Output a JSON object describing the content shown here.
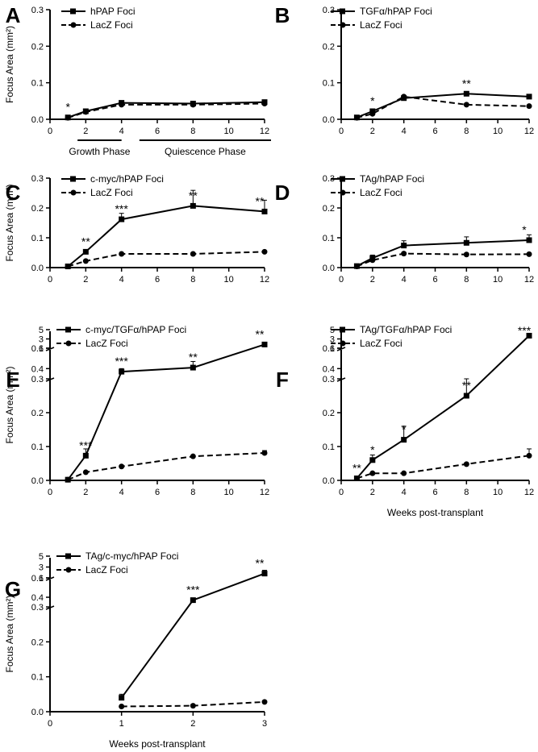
{
  "figure_caption": "",
  "chart_data": [
    {
      "panel": "A",
      "type": "line",
      "title": "",
      "ylabel": "Focus Area (mm²)",
      "xlabel": "",
      "xlim": [
        0,
        12
      ],
      "xticks": [
        0,
        2,
        4,
        6,
        8,
        10,
        12
      ],
      "ylim": [
        0,
        0.3
      ],
      "yticks": [
        0.0,
        0.1,
        0.2,
        0.3
      ],
      "series": [
        {
          "name": "hPAP Foci",
          "style": "solid",
          "marker": "square",
          "x": [
            1,
            2,
            4,
            8,
            12
          ],
          "y": [
            0.005,
            0.022,
            0.045,
            0.043,
            0.047
          ],
          "err": [
            0,
            0.003,
            0.004,
            0.004,
            0.004
          ]
        },
        {
          "name": "LacZ Foci",
          "style": "dashed",
          "marker": "circle",
          "x": [
            1,
            2,
            4,
            8,
            12
          ],
          "y": [
            0.004,
            0.02,
            0.04,
            0.04,
            0.043
          ],
          "err": [
            0,
            0,
            0,
            0,
            0
          ]
        }
      ],
      "annotations": [
        {
          "x": 1,
          "y": 0.005,
          "text": "*"
        }
      ],
      "phases": [
        {
          "label": "Growth Phase",
          "from": 1,
          "to": 4
        },
        {
          "label": "Quiescence Phase",
          "from": 5,
          "to": 12
        }
      ]
    },
    {
      "panel": "B",
      "type": "line",
      "title": "",
      "ylabel": "",
      "xlabel": "",
      "xlim": [
        0,
        12
      ],
      "xticks": [
        0,
        2,
        4,
        6,
        8,
        10,
        12
      ],
      "ylim": [
        0,
        0.3
      ],
      "yticks": [
        0.0,
        0.1,
        0.2,
        0.3
      ],
      "series": [
        {
          "name": "TGFα/hPAP Foci",
          "style": "solid",
          "marker": "square",
          "x": [
            1,
            2,
            4,
            8,
            12
          ],
          "y": [
            0.005,
            0.022,
            0.058,
            0.07,
            0.062
          ],
          "err": [
            0,
            0.004,
            0.004,
            0.006,
            0.006
          ]
        },
        {
          "name": "LacZ Foci",
          "style": "dashed",
          "marker": "circle",
          "x": [
            1,
            2,
            4,
            8,
            12
          ],
          "y": [
            0.004,
            0.015,
            0.062,
            0.04,
            0.036
          ],
          "err": [
            0,
            0,
            0,
            0,
            0
          ]
        }
      ],
      "annotations": [
        {
          "x": 2,
          "y": 0.022,
          "text": "*"
        },
        {
          "x": 8,
          "y": 0.07,
          "text": "**"
        }
      ]
    },
    {
      "panel": "C",
      "type": "line",
      "title": "",
      "ylabel": "Focus Area (mm²)",
      "xlabel": "",
      "xlim": [
        0,
        12
      ],
      "xticks": [
        0,
        2,
        4,
        6,
        8,
        10,
        12
      ],
      "ylim": [
        0,
        0.3
      ],
      "yticks": [
        0.0,
        0.1,
        0.2,
        0.3
      ],
      "series": [
        {
          "name": "c-myc/hPAP Foci",
          "style": "solid",
          "marker": "square",
          "x": [
            1,
            2,
            4,
            8,
            12
          ],
          "y": [
            0.004,
            0.053,
            0.162,
            0.207,
            0.188
          ],
          "err": [
            0,
            0.006,
            0.02,
            0.052,
            0.038
          ]
        },
        {
          "name": "LacZ Foci",
          "style": "dashed",
          "marker": "circle",
          "x": [
            1,
            2,
            4,
            8,
            12
          ],
          "y": [
            0.004,
            0.022,
            0.046,
            0.046,
            0.053
          ],
          "err": [
            0,
            0,
            0,
            0,
            0
          ]
        }
      ],
      "annotations": [
        {
          "x": 2,
          "y": 0.053,
          "text": "**"
        },
        {
          "x": 4,
          "y": 0.162,
          "text": "***"
        },
        {
          "x": 8,
          "y": 0.207,
          "text": "**"
        },
        {
          "x": 12,
          "y": 0.188,
          "text": "**"
        }
      ]
    },
    {
      "panel": "D",
      "type": "line",
      "title": "",
      "ylabel": "",
      "xlabel": "",
      "xlim": [
        0,
        12
      ],
      "xticks": [
        0,
        2,
        4,
        6,
        8,
        10,
        12
      ],
      "ylim": [
        0,
        0.3
      ],
      "yticks": [
        0.0,
        0.1,
        0.2,
        0.3
      ],
      "series": [
        {
          "name": "TAg/hPAP Foci",
          "style": "solid",
          "marker": "square",
          "x": [
            1,
            2,
            4,
            8,
            12
          ],
          "y": [
            0.005,
            0.032,
            0.074,
            0.083,
            0.092
          ],
          "err": [
            0,
            0.01,
            0.016,
            0.02,
            0.018
          ]
        },
        {
          "name": "LacZ Foci",
          "style": "dashed",
          "marker": "circle",
          "x": [
            1,
            2,
            4,
            8,
            12
          ],
          "y": [
            0.004,
            0.025,
            0.047,
            0.044,
            0.045
          ],
          "err": [
            0,
            0,
            0,
            0,
            0
          ]
        }
      ],
      "annotations": [
        {
          "x": 12,
          "y": 0.092,
          "text": "*"
        }
      ]
    },
    {
      "panel": "E",
      "type": "line",
      "title": "",
      "ylabel": "Focus Area (mm²)",
      "xlabel": "",
      "xlim": [
        0,
        12
      ],
      "xticks": [
        0,
        2,
        4,
        6,
        8,
        10,
        12
      ],
      "ylim_segments": [
        [
          0,
          0.3
        ],
        [
          0.3,
          0.6
        ],
        [
          1,
          5
        ]
      ],
      "yticks": [
        0.0,
        0.1,
        0.2,
        0.3,
        0.4,
        0.6,
        1,
        3,
        5
      ],
      "series": [
        {
          "name": "c-myc/TGFα/hPAP Foci",
          "style": "solid",
          "marker": "square",
          "x": [
            1,
            2,
            4,
            8,
            12
          ],
          "y": [
            0.002,
            0.073,
            0.37,
            0.41,
            1.8
          ],
          "err": [
            0,
            0.02,
            0.03,
            0.06,
            0
          ]
        },
        {
          "name": "LacZ Foci",
          "style": "dashed",
          "marker": "circle",
          "x": [
            1,
            2,
            4,
            8,
            12
          ],
          "y": [
            0.002,
            0.024,
            0.041,
            0.071,
            0.081
          ],
          "err": [
            0,
            0,
            0,
            0,
            0.007
          ]
        }
      ],
      "annotations": [
        {
          "x": 2,
          "y": 0.073,
          "text": "***"
        },
        {
          "x": 4,
          "y": 0.37,
          "text": "***"
        },
        {
          "x": 8,
          "y": 0.41,
          "text": "**"
        },
        {
          "x": 12,
          "y": 1.8,
          "text": "**"
        }
      ]
    },
    {
      "panel": "F",
      "type": "line",
      "title": "",
      "ylabel": "",
      "xlabel": "Weeks post-transplant",
      "xlim": [
        0,
        12
      ],
      "xticks": [
        0,
        2,
        4,
        6,
        8,
        10,
        12
      ],
      "ylim_segments": [
        [
          0,
          0.3
        ],
        [
          0.3,
          0.6
        ],
        [
          1,
          5
        ]
      ],
      "yticks": [
        0.0,
        0.1,
        0.2,
        0.3,
        0.4,
        0.6,
        1,
        3,
        5
      ],
      "series": [
        {
          "name": "TAg/TGFα/hPAP Foci",
          "style": "solid",
          "marker": "square",
          "x": [
            1,
            2,
            4,
            8,
            12
          ],
          "y": [
            0.006,
            0.06,
            0.12,
            0.25,
            3.7
          ],
          "err": [
            0,
            0.015,
            0.04,
            0.05,
            0
          ]
        },
        {
          "name": "LacZ Foci",
          "style": "dashed",
          "marker": "circle",
          "x": [
            1,
            2,
            4,
            8,
            12
          ],
          "y": [
            0.006,
            0.021,
            0.021,
            0.048,
            0.073
          ],
          "err": [
            0,
            0,
            0,
            0,
            0.02
          ]
        }
      ],
      "annotations": [
        {
          "x": 1,
          "y": 0.006,
          "text": "**"
        },
        {
          "x": 2,
          "y": 0.06,
          "text": "*"
        },
        {
          "x": 4,
          "y": 0.12,
          "text": "*"
        },
        {
          "x": 8,
          "y": 0.25,
          "text": "**"
        },
        {
          "x": 12,
          "y": 3.7,
          "text": "***"
        }
      ]
    },
    {
      "panel": "G",
      "type": "line",
      "title": "",
      "ylabel": "Focus Area (mm²)",
      "xlabel": "Weeks post-transplant",
      "xlim": [
        0,
        3
      ],
      "xticks": [
        0,
        1,
        2,
        3
      ],
      "ylim_segments": [
        [
          0,
          0.3
        ],
        [
          0.3,
          0.6
        ],
        [
          1,
          5
        ]
      ],
      "yticks": [
        0.0,
        0.1,
        0.2,
        0.3,
        0.4,
        0.6,
        1,
        3,
        5
      ],
      "series": [
        {
          "name": "TAg/c-myc/hPAP Foci",
          "style": "solid",
          "marker": "square",
          "x": [
            1,
            2,
            3
          ],
          "y": [
            0.04,
            0.37,
            1.8
          ],
          "err": [
            0.01,
            0.02,
            0.6
          ]
        },
        {
          "name": "LacZ Foci",
          "style": "dashed",
          "marker": "circle",
          "x": [
            1,
            2,
            3
          ],
          "y": [
            0.015,
            0.017,
            0.028
          ],
          "err": [
            0,
            0,
            0
          ]
        }
      ],
      "annotations": [
        {
          "x": 2,
          "y": 0.37,
          "text": "***"
        },
        {
          "x": 3,
          "y": 1.8,
          "text": "**"
        }
      ]
    }
  ]
}
